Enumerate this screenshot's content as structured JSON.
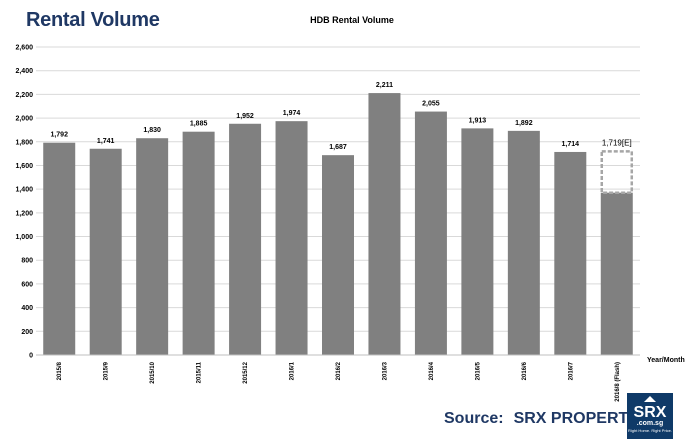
{
  "page": {
    "heading": "Rental Volume",
    "source_label": "Source:",
    "source_name": "SRX PROPERTY"
  },
  "logo": {
    "icon": "house-icon",
    "brand": "SRX",
    "domain": ".com.sg",
    "tagline": "Right Home. Right Price."
  },
  "chart_data": {
    "type": "bar",
    "title": "HDB Rental Volume",
    "xlabel": "Year/Month",
    "ylabel": "",
    "ylim": [
      0,
      2600
    ],
    "yticks": [
      0,
      200,
      400,
      600,
      800,
      1000,
      1200,
      1400,
      1600,
      1800,
      2000,
      2200,
      2400,
      2600
    ],
    "ytick_labels": [
      "0",
      "200",
      "400",
      "600",
      "800",
      "1,000",
      "1,200",
      "1,400",
      "1,600",
      "1,800",
      "2,000",
      "2,200",
      "2,400",
      "2,600"
    ],
    "grid": true,
    "categories": [
      "2015/8",
      "2015/9",
      "2015/10",
      "2015/11",
      "2015/12",
      "2016/1",
      "2016/2",
      "2016/3",
      "2016/4",
      "2016/5",
      "2016/6",
      "2016/7",
      "2016/8 (Flash)"
    ],
    "values": [
      1792,
      1741,
      1830,
      1885,
      1952,
      1974,
      1687,
      2211,
      2055,
      1913,
      1892,
      1714,
      1719
    ],
    "value_labels": [
      "1,792",
      "1,741",
      "1,830",
      "1,885",
      "1,952",
      "1,974",
      "1,687",
      "2,211",
      "2,055",
      "1,913",
      "1,892",
      "1,714",
      "1,719[E]"
    ],
    "flash": {
      "index": 12,
      "actual": 1370,
      "estimate": 1719
    },
    "colors": {
      "bar": "#808080",
      "estimate_border": "#a6a6a6",
      "grid": "#d9d9d9"
    }
  }
}
